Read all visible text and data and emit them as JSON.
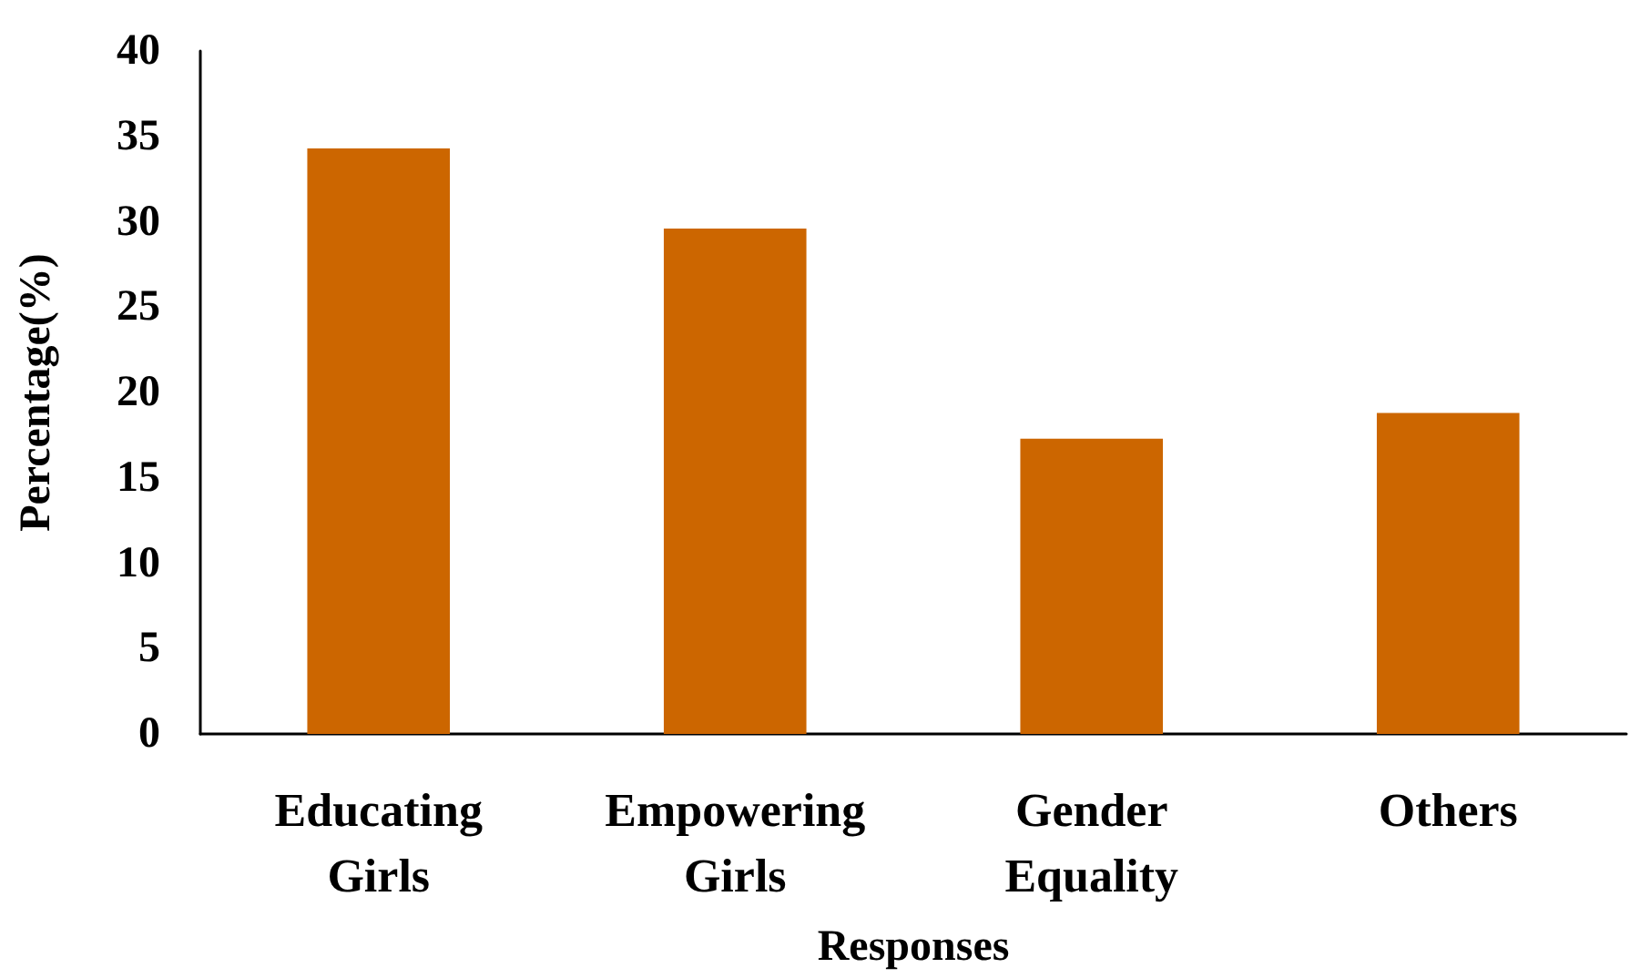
{
  "chart_data": {
    "type": "bar",
    "xlabel": "Responses",
    "ylabel": "Percentage(%)",
    "categories": [
      "Educating Girls",
      "Empowering Girls",
      "Gender Equality",
      "Others"
    ],
    "values": [
      34.3,
      29.6,
      17.3,
      18.8
    ],
    "color": "#cc6600",
    "ylim": [
      0,
      40
    ],
    "yticks": [
      0,
      5,
      10,
      15,
      20,
      25,
      30,
      35,
      40
    ],
    "grid": false
  }
}
